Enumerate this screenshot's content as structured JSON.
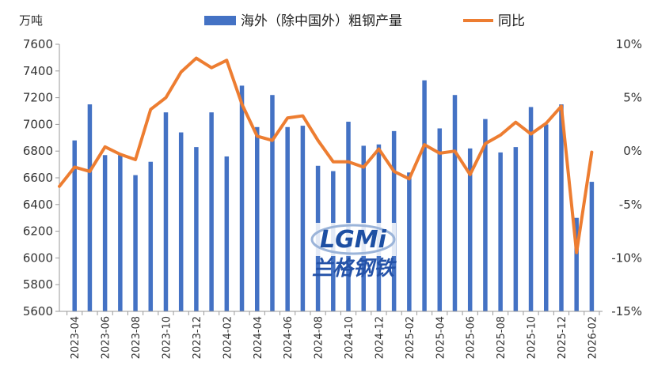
{
  "chart_data": {
    "type": "bar",
    "left_unit": "万吨",
    "x": [
      "2023-03",
      "2023-04",
      "2023-05",
      "2023-06",
      "2023-07",
      "2023-08",
      "2023-09",
      "2023-10",
      "2023-11",
      "2023-12",
      "2024-01",
      "2024-02",
      "2024-03",
      "2024-04",
      "2024-05",
      "2024-06",
      "2024-07",
      "2024-08",
      "2024-09",
      "2024-10",
      "2024-11",
      "2024-12",
      "2025-01",
      "2025-02",
      "2025-03",
      "2025-04",
      "2025-05",
      "2025-06",
      "2025-07",
      "2025-08",
      "2025-09",
      "2025-10",
      "2025-11",
      "2025-12",
      "2026-01",
      "2026-02"
    ],
    "x_tick_labels": [
      "2023-04",
      "2023-06",
      "2023-08",
      "2023-10",
      "2023-12",
      "2024-02",
      "2024-04",
      "2024-06",
      "2024-08",
      "2024-10",
      "2024-12",
      "2025-02",
      "2025-04",
      "2025-06",
      "2025-08",
      "2025-10",
      "2025-12",
      "2026-02"
    ],
    "series": [
      {
        "name": "海外（除中国外）粗钢产量",
        "type": "bar",
        "axis": "left",
        "color": "#4472c4",
        "values": [
          null,
          6880,
          7150,
          6770,
          6770,
          6620,
          6720,
          7090,
          6940,
          6830,
          7090,
          6760,
          7290,
          6980,
          7220,
          6980,
          6990,
          6690,
          6650,
          7020,
          6840,
          6850,
          6950,
          6640,
          7330,
          6970,
          7220,
          6820,
          7040,
          6790,
          6830,
          7130,
          7000,
          7150,
          6300,
          6570
        ]
      },
      {
        "name": "同比",
        "type": "line",
        "axis": "right",
        "color": "#ed7d31",
        "values": [
          -3.3,
          -1.5,
          -1.9,
          0.4,
          -0.3,
          -0.8,
          3.9,
          5.0,
          7.4,
          8.7,
          7.8,
          8.5,
          4.4,
          1.4,
          1.0,
          3.1,
          3.3,
          1.0,
          -1.0,
          -1.0,
          -1.5,
          0.2,
          -1.9,
          -2.6,
          0.6,
          -0.2,
          0.0,
          -2.2,
          0.7,
          1.5,
          2.7,
          1.6,
          2.6,
          4.2,
          -9.5,
          -0.1
        ]
      }
    ],
    "y_left": {
      "min": 5600,
      "max": 7600,
      "step": 200,
      "ticks": [
        "5600",
        "5800",
        "6000",
        "6200",
        "6400",
        "6600",
        "6800",
        "7000",
        "7200",
        "7400",
        "7600"
      ]
    },
    "y_right": {
      "min": -15,
      "max": 10,
      "step": 5,
      "ticks": [
        "-15%",
        "-10%",
        "-5%",
        "0%",
        "5%",
        "10%"
      ]
    },
    "legend": {
      "placement": "top"
    },
    "grid": false
  },
  "watermark": {
    "logo": "LGMi",
    "text": "兰格钢铁"
  }
}
